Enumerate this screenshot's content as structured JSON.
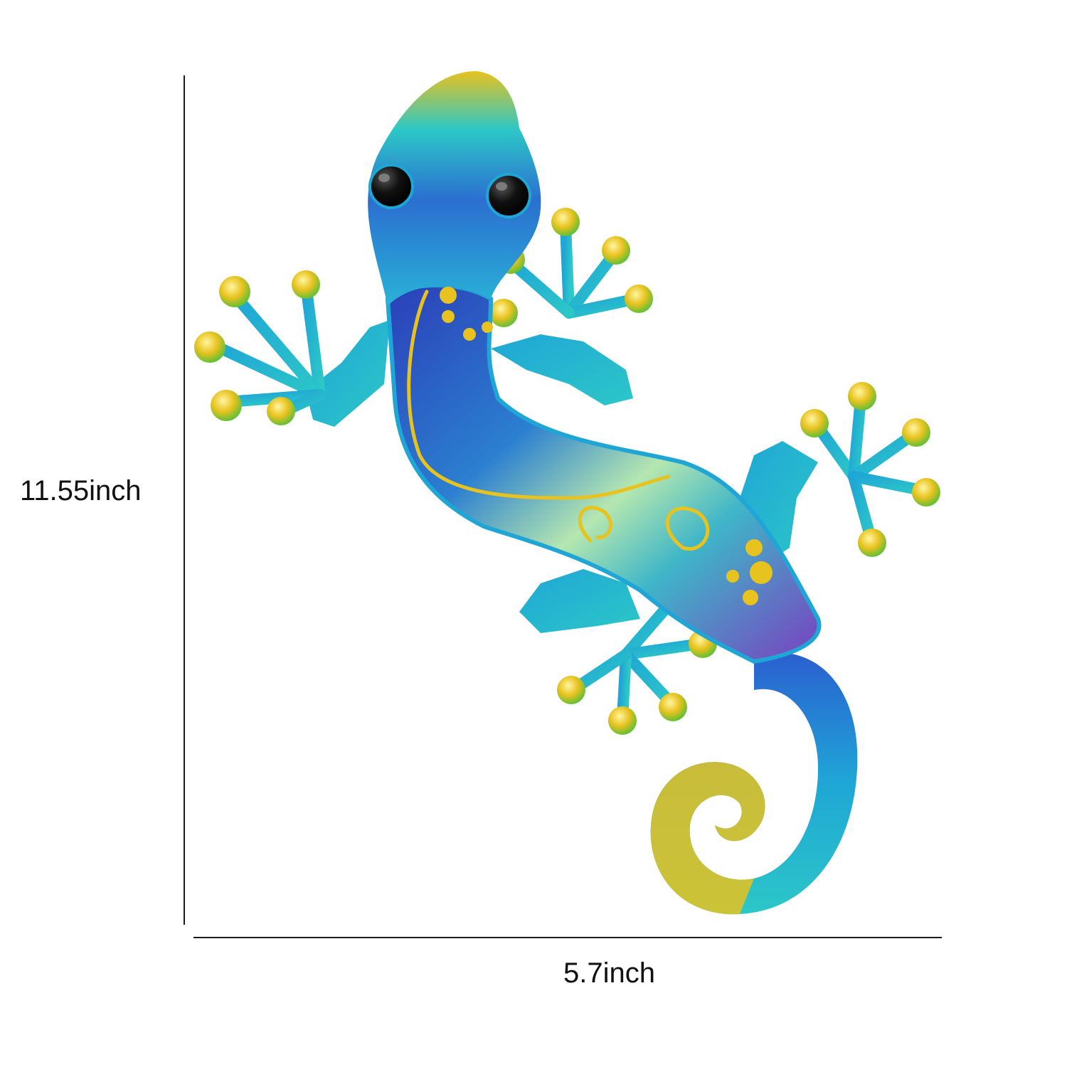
{
  "dimensions": {
    "height_label": "11.55inch",
    "width_label": "5.7inch"
  },
  "product": {
    "subject": "gecko-wall-decor",
    "colors": {
      "blue": "#1fa6d6",
      "deep_blue": "#2b3fb8",
      "purple": "#7a3fc0",
      "teal": "#2cc7c7",
      "gold": "#e8c21e",
      "green": "#4fbf3a"
    }
  }
}
